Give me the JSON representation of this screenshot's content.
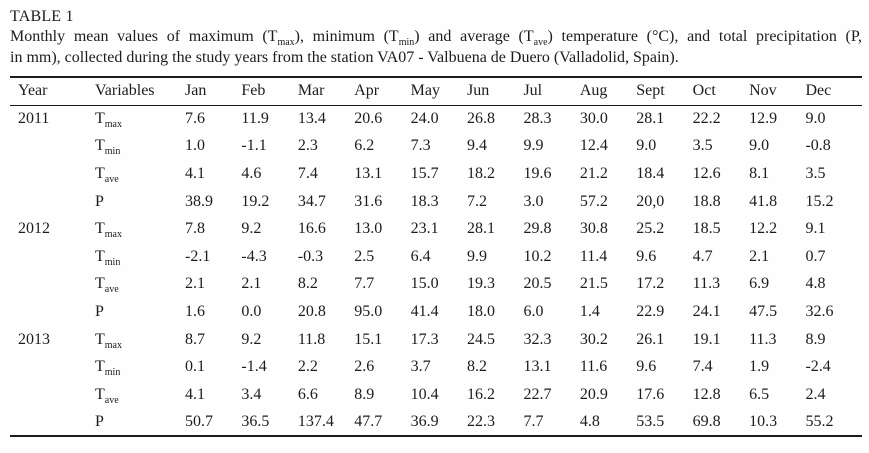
{
  "page": {
    "background_color": "#fefefe",
    "text_color": "#1c1c1c",
    "rule_color": "#1c1c1c"
  },
  "caption": {
    "label": "TABLE 1",
    "line1": {
      "seg1": "Monthly mean values of maximum (T",
      "sub1": "max",
      "seg2": "), minimum (T",
      "sub2": "min",
      "seg3": ") and average (T",
      "sub3": "ave",
      "seg4": ") temperature (°C), and total precipitation (P,"
    },
    "line2": "in mm), collected during the study years from the station VA07 - Valbuena de Duero (Valladolid, Spain)."
  },
  "table": {
    "columns": [
      "Year",
      "Variables",
      "Jan",
      "Feb",
      "Mar",
      "Apr",
      "May",
      "Jun",
      "Jul",
      "Aug",
      "Sept",
      "Oct",
      "Nov",
      "Dec"
    ],
    "rows": [
      {
        "year": "2011",
        "variable": "T",
        "subscript": "max",
        "values": [
          "7.6",
          "11.9",
          "13.4",
          "20.6",
          "24.0",
          "26.8",
          "28.3",
          "30.0",
          "28.1",
          "22.2",
          "12.9",
          "9.0"
        ]
      },
      {
        "year": "",
        "variable": "T",
        "subscript": "min",
        "values": [
          "1.0",
          "-1.1",
          "2.3",
          "6.2",
          "7.3",
          "9.4",
          "9.9",
          "12.4",
          "9.0",
          "3.5",
          "9.0",
          "-0.8"
        ]
      },
      {
        "year": "",
        "variable": "T",
        "subscript": "ave",
        "values": [
          "4.1",
          "4.6",
          "7.4",
          "13.1",
          "15.7",
          "18.2",
          "19.6",
          "21.2",
          "18.4",
          "12.6",
          "8.1",
          "3.5"
        ]
      },
      {
        "year": "",
        "variable": "P",
        "subscript": "",
        "values": [
          "38.9",
          "19.2",
          "34.7",
          "31.6",
          "18.3",
          "7.2",
          "3.0",
          "57.2",
          "20,0",
          "18.8",
          "41.8",
          "15.2"
        ]
      },
      {
        "year": "2012",
        "variable": "T",
        "subscript": "max",
        "values": [
          "7.8",
          "9.2",
          "16.6",
          "13.0",
          "23.1",
          "28.1",
          "29.8",
          "30.8",
          "25.2",
          "18.5",
          "12.2",
          "9.1"
        ]
      },
      {
        "year": "",
        "variable": "T",
        "subscript": "min",
        "values": [
          "-2.1",
          "-4.3",
          "-0.3",
          "2.5",
          "6.4",
          "9.9",
          "10.2",
          "11.4",
          "9.6",
          "4.7",
          "2.1",
          "0.7"
        ]
      },
      {
        "year": "",
        "variable": "T",
        "subscript": "ave",
        "values": [
          "2.1",
          "2.1",
          "8.2",
          "7.7",
          "15.0",
          "19.3",
          "20.5",
          "21.5",
          "17.2",
          "11.3",
          "6.9",
          "4.8"
        ]
      },
      {
        "year": "",
        "variable": "P",
        "subscript": "",
        "values": [
          "1.6",
          "0.0",
          "20.8",
          "95.0",
          "41.4",
          "18.0",
          "6.0",
          "1.4",
          "22.9",
          "24.1",
          "47.5",
          "32.6"
        ]
      },
      {
        "year": "2013",
        "variable": "T",
        "subscript": "max",
        "values": [
          "8.7",
          "9.2",
          "11.8",
          "15.1",
          "17.3",
          "24.5",
          "32.3",
          "30.2",
          "26.1",
          "19.1",
          "11.3",
          "8.9"
        ]
      },
      {
        "year": "",
        "variable": "T",
        "subscript": "min",
        "values": [
          "0.1",
          "-1.4",
          "2.2",
          "2.6",
          "3.7",
          "8.2",
          "13.1",
          "11.6",
          "9.6",
          "7.4",
          "1.9",
          "-2.4"
        ]
      },
      {
        "year": "",
        "variable": "T",
        "subscript": "ave",
        "values": [
          "4.1",
          "3.4",
          "6.6",
          "8.9",
          "10.4",
          "16.2",
          "22.7",
          "20.9",
          "17.6",
          "12.8",
          "6.5",
          "2.4"
        ]
      },
      {
        "year": "",
        "variable": "P",
        "subscript": "",
        "values": [
          "50.7",
          "36.5",
          "137.4",
          "47.7",
          "36.9",
          "22.3",
          "7.7",
          "4.8",
          "53.5",
          "69.8",
          "10.3",
          "55.2"
        ]
      }
    ]
  }
}
